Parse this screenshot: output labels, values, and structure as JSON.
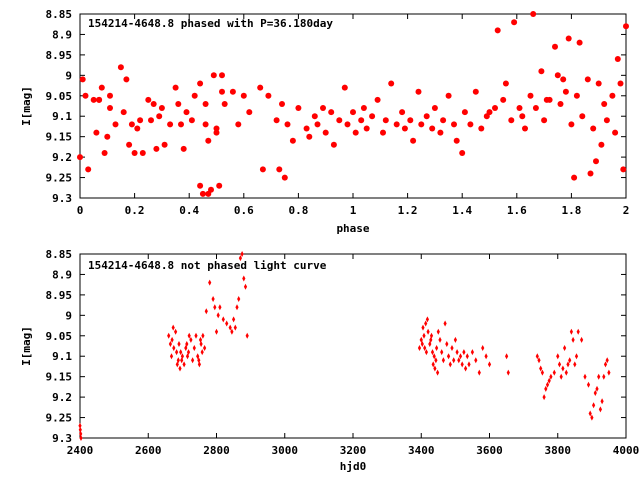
{
  "chart_data": [
    {
      "type": "scatter",
      "title": "154214-4648.8 phased with P=36.180day",
      "xlabel": "phase",
      "ylabel": "I[mag]",
      "xlim": [
        0,
        2
      ],
      "ylim": [
        9.3,
        8.85
      ],
      "y_inverted": true,
      "xticks": [
        "0",
        "0.2",
        "0.4",
        "0.6",
        "0.8",
        "1",
        "1.2",
        "1.4",
        "1.6",
        "1.8",
        "2"
      ],
      "yticks": [
        "8.85",
        "8.9",
        "8.95",
        "9",
        "9.05",
        "9.1",
        "9.15",
        "9.2",
        "9.25",
        "9.3"
      ],
      "marker": "filled-circle",
      "grid": false,
      "color": "#ff0000",
      "x": [
        0.0,
        0.01,
        0.02,
        0.03,
        0.05,
        0.06,
        0.07,
        0.08,
        0.09,
        0.1,
        0.11,
        0.13,
        0.15,
        0.16,
        0.17,
        0.18,
        0.19,
        0.2,
        0.21,
        0.22,
        0.23,
        0.25,
        0.26,
        0.27,
        0.28,
        0.29,
        0.3,
        0.31,
        0.33,
        0.35,
        0.36,
        0.37,
        0.38,
        0.39,
        0.41,
        0.42,
        0.44,
        0.45,
        0.46,
        0.47,
        0.48,
        0.49,
        0.5,
        0.51,
        0.52,
        0.53,
        0.56,
        0.58,
        0.6,
        0.62,
        0.66,
        0.67,
        0.69,
        0.72,
        0.74,
        0.75,
        0.76,
        0.78,
        0.8,
        0.83,
        0.84,
        0.86,
        0.87,
        0.89,
        0.9,
        0.92,
        0.93,
        0.95,
        0.97,
        0.98,
        1.0,
        1.01,
        1.03,
        1.04,
        1.05,
        1.07,
        1.09,
        1.11,
        1.12,
        1.14,
        1.16,
        1.18,
        1.19,
        1.21,
        1.22,
        1.24,
        1.25,
        1.27,
        1.29,
        1.3,
        1.32,
        1.33,
        1.35,
        1.37,
        1.38,
        1.4,
        1.41,
        1.43,
        1.45,
        1.47,
        1.49,
        1.5,
        1.52,
        1.53,
        1.55,
        1.56,
        1.58,
        1.59,
        1.61,
        1.62,
        1.63,
        1.65,
        1.66,
        1.67,
        1.69,
        1.7,
        1.72,
        1.74,
        1.75,
        1.76,
        1.78,
        1.79,
        1.8,
        1.81,
        1.82,
        1.83,
        1.84,
        1.86,
        1.87,
        1.88,
        1.9,
        1.91,
        1.92,
        1.93,
        1.95,
        1.96,
        1.97,
        1.98,
        1.99,
        2.0,
        1.89,
        1.77,
        1.71,
        0.46,
        0.44,
        0.47,
        0.73,
        0.07,
        0.11,
        0.52,
        0.5
      ],
      "y": [
        9.2,
        9.01,
        9.05,
        9.23,
        9.06,
        9.14,
        9.06,
        9.03,
        9.19,
        9.15,
        9.05,
        9.12,
        8.98,
        9.09,
        9.01,
        9.17,
        9.12,
        9.19,
        9.13,
        9.11,
        9.19,
        9.06,
        9.11,
        9.07,
        9.18,
        9.1,
        9.08,
        9.17,
        9.12,
        9.03,
        9.07,
        9.12,
        9.18,
        9.09,
        9.11,
        9.05,
        9.02,
        9.29,
        9.07,
        9.16,
        9.28,
        9.0,
        9.13,
        9.27,
        9.0,
        9.07,
        9.04,
        9.12,
        9.05,
        9.09,
        9.03,
        9.23,
        9.05,
        9.11,
        9.07,
        9.25,
        9.12,
        9.16,
        9.08,
        9.13,
        9.15,
        9.1,
        9.12,
        9.08,
        9.14,
        9.09,
        9.17,
        9.11,
        9.03,
        9.12,
        9.09,
        9.14,
        9.11,
        9.08,
        9.13,
        9.1,
        9.06,
        9.14,
        9.11,
        9.02,
        9.12,
        9.09,
        9.13,
        9.11,
        9.16,
        9.04,
        9.12,
        9.1,
        9.13,
        9.08,
        9.14,
        9.11,
        9.05,
        9.12,
        9.16,
        9.19,
        9.09,
        9.12,
        9.04,
        9.13,
        9.1,
        9.09,
        9.08,
        8.89,
        9.06,
        9.02,
        9.11,
        8.87,
        9.08,
        9.1,
        9.13,
        9.05,
        8.85,
        9.08,
        8.99,
        9.11,
        9.06,
        8.93,
        9.0,
        9.07,
        9.04,
        8.91,
        9.12,
        9.25,
        9.05,
        8.92,
        9.1,
        9.01,
        9.24,
        9.13,
        9.02,
        9.17,
        9.07,
        9.11,
        9.05,
        9.14,
        8.96,
        9.02,
        9.23,
        8.88,
        9.21,
        9.01,
        9.06,
        9.12,
        9.27,
        9.29,
        9.23,
        9.06,
        9.08,
        9.04,
        9.14
      ]
    },
    {
      "type": "scatter",
      "title": "154214-4648.8 not phased light curve",
      "xlabel": "hjd0",
      "ylabel": "I[mag]",
      "xlim": [
        2400,
        4000
      ],
      "ylim": [
        9.3,
        8.85
      ],
      "y_inverted": true,
      "xticks": [
        "2400",
        "2600",
        "2800",
        "3000",
        "3200",
        "3400",
        "3600",
        "3800",
        "4000"
      ],
      "yticks": [
        "8.85",
        "8.9",
        "8.95",
        "9",
        "9.05",
        "9.1",
        "9.15",
        "9.2",
        "9.25",
        "9.3"
      ],
      "marker": "small-diamond",
      "grid": false,
      "color": "#ff0000",
      "x": [
        2400,
        2401,
        2402,
        2403,
        2660,
        2665,
        2668,
        2670,
        2673,
        2675,
        2680,
        2683,
        2685,
        2688,
        2690,
        2693,
        2695,
        2698,
        2700,
        2705,
        2710,
        2713,
        2715,
        2718,
        2720,
        2725,
        2730,
        2735,
        2740,
        2745,
        2748,
        2750,
        2753,
        2755,
        2758,
        2760,
        2765,
        2770,
        2780,
        2790,
        2795,
        2800,
        2805,
        2810,
        2820,
        2830,
        2840,
        2845,
        2850,
        2855,
        2860,
        2865,
        2870,
        2875,
        2880,
        2885,
        2890,
        3395,
        3400,
        3403,
        3405,
        3408,
        3410,
        3413,
        3415,
        3418,
        3420,
        3425,
        3428,
        3430,
        3433,
        3435,
        3438,
        3440,
        3443,
        3445,
        3448,
        3450,
        3455,
        3460,
        3465,
        3470,
        3475,
        3480,
        3485,
        3490,
        3495,
        3500,
        3505,
        3510,
        3515,
        3520,
        3525,
        3530,
        3535,
        3540,
        3550,
        3560,
        3570,
        3580,
        3590,
        3600,
        3650,
        3655,
        3740,
        3745,
        3750,
        3755,
        3760,
        3765,
        3770,
        3775,
        3780,
        3790,
        3800,
        3805,
        3810,
        3815,
        3820,
        3825,
        3830,
        3835,
        3840,
        3845,
        3850,
        3855,
        3860,
        3870,
        3880,
        3890,
        3895,
        3900,
        3905,
        3910,
        3915,
        3920,
        3925,
        3930,
        3935,
        3940,
        3945,
        3950
      ],
      "y": [
        9.27,
        9.28,
        9.29,
        9.3,
        9.05,
        9.07,
        9.1,
        9.06,
        9.03,
        9.08,
        9.04,
        9.09,
        9.12,
        9.11,
        9.07,
        9.13,
        9.09,
        9.11,
        9.1,
        9.12,
        9.08,
        9.07,
        9.1,
        9.09,
        9.05,
        9.06,
        9.11,
        9.08,
        9.05,
        9.1,
        9.11,
        9.12,
        9.06,
        9.07,
        9.09,
        9.05,
        9.08,
        8.99,
        8.92,
        8.96,
        8.98,
        9.04,
        9.0,
        8.98,
        9.01,
        9.02,
        9.03,
        9.04,
        9.01,
        9.03,
        8.98,
        8.96,
        8.86,
        8.85,
        8.91,
        8.93,
        9.05,
        9.08,
        9.06,
        9.07,
        9.03,
        9.05,
        9.08,
        9.02,
        9.09,
        9.01,
        9.04,
        9.07,
        9.06,
        9.05,
        9.09,
        9.12,
        9.1,
        9.13,
        9.11,
        9.08,
        9.14,
        9.04,
        9.06,
        9.09,
        9.11,
        9.02,
        9.07,
        9.1,
        9.12,
        9.08,
        9.11,
        9.06,
        9.09,
        9.11,
        9.1,
        9.12,
        9.09,
        9.13,
        9.1,
        9.12,
        9.09,
        9.11,
        9.14,
        9.08,
        9.1,
        9.12,
        9.1,
        9.14,
        9.1,
        9.11,
        9.13,
        9.14,
        9.2,
        9.18,
        9.17,
        9.16,
        9.15,
        9.14,
        9.1,
        9.12,
        9.15,
        9.13,
        9.08,
        9.14,
        9.12,
        9.11,
        9.04,
        9.06,
        9.12,
        9.1,
        9.04,
        9.06,
        9.15,
        9.17,
        9.24,
        9.25,
        9.22,
        9.19,
        9.18,
        9.15,
        9.23,
        9.21,
        9.15,
        9.12,
        9.11,
        9.14
      ]
    }
  ]
}
